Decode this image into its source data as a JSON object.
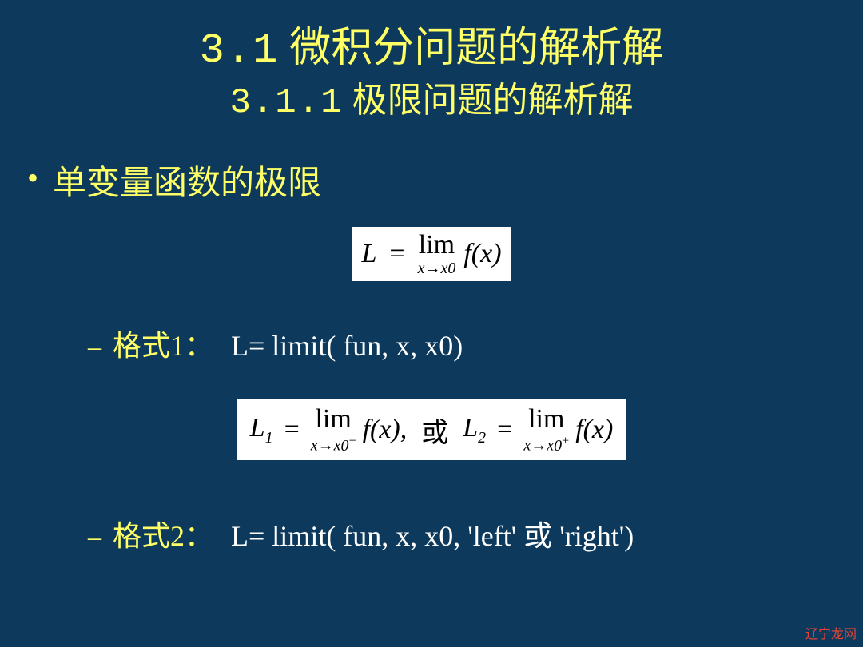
{
  "colors": {
    "background": "#0d3a5c",
    "heading": "#ffff66",
    "bullet": "#ffff66",
    "body_text": "#ffff66",
    "code_text": "#ffffff",
    "formula_bg": "#ffffff",
    "formula_text": "#000000",
    "watermark": "#ff4433"
  },
  "typography": {
    "title_fontsize_pt": 40,
    "subtitle_fontsize_pt": 33,
    "bullet_fontsize_pt": 32,
    "dash_fontsize_pt": 28,
    "formula_fontsize_pt": 26,
    "font_family": "SimSun / Times New Roman"
  },
  "title": {
    "section_number": "3.1",
    "section_text": "微积分问题的解析解",
    "subsection_number": "3.1.1",
    "subsection_text": "极限问题的解析解"
  },
  "bullet": {
    "marker": "•",
    "text": "单变量函数的极限"
  },
  "formula1": {
    "lhs": "L",
    "eq": "=",
    "lim_label": "lim",
    "lim_sub": "x→x",
    "lim_sub_index": "0",
    "rhs": "f(x)"
  },
  "format1": {
    "dash": "–",
    "label": "格式1：",
    "code": "L= limit( fun, x, x0)"
  },
  "formula2": {
    "L1": "L",
    "L1_sub": "1",
    "eq": "=",
    "lim_label": "lim",
    "lim_sub_base": "x→x",
    "lim_sub_index": "0",
    "minus_sup": "−",
    "fx": "f(x),",
    "or": "或",
    "L2": "L",
    "L2_sub": "2",
    "plus_sup": "+"
  },
  "format2": {
    "dash": "–",
    "label": "格式2：",
    "code": "L= limit( fun, x, x0, 'left' 或  'right')"
  },
  "watermark": "辽宁龙网"
}
